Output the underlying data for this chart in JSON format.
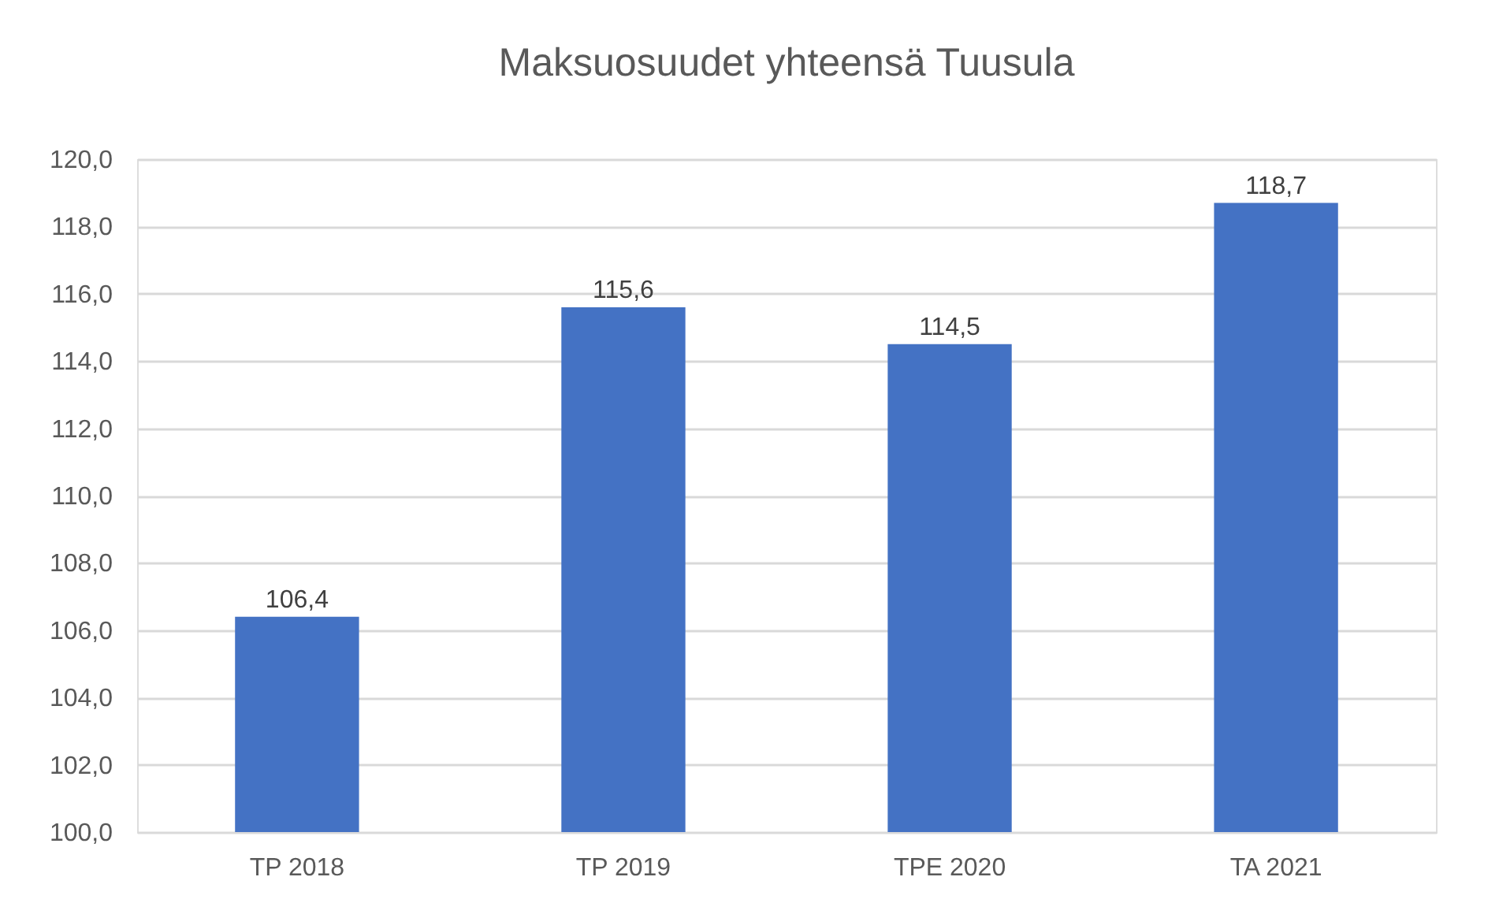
{
  "chart_data": {
    "type": "bar",
    "title": "Maksuosuudet yhteensä Tuusula",
    "categories": [
      "TP 2018",
      "TP 2019",
      "TPE 2020",
      "TA 2021"
    ],
    "values": [
      106.4,
      115.6,
      114.5,
      118.7
    ],
    "value_labels": [
      "106,4",
      "115,6",
      "114,5",
      "118,7"
    ],
    "color": "#4472c4",
    "ylim": [
      100,
      120
    ],
    "yticks": [
      {
        "value": 100,
        "label": "100,0"
      },
      {
        "value": 102,
        "label": "102,0"
      },
      {
        "value": 104,
        "label": "104,0"
      },
      {
        "value": 106,
        "label": "106,0"
      },
      {
        "value": 108,
        "label": "108,0"
      },
      {
        "value": 110,
        "label": "110,0"
      },
      {
        "value": 112,
        "label": "112,0"
      },
      {
        "value": 114,
        "label": "114,0"
      },
      {
        "value": 116,
        "label": "116,0"
      },
      {
        "value": 118,
        "label": "118,0"
      },
      {
        "value": 120,
        "label": "120,0"
      }
    ],
    "grid": "y"
  }
}
